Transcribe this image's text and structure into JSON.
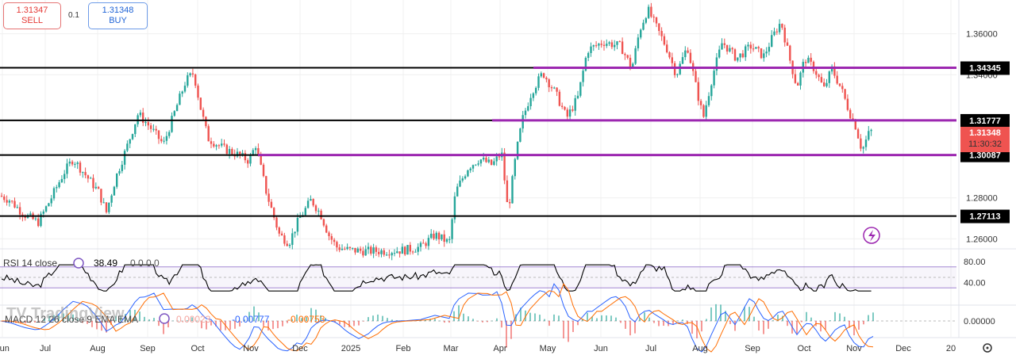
{
  "trade": {
    "sell_price": "1.31347",
    "sell_label": "SELL",
    "spread": "0.1",
    "buy_price": "1.31348",
    "buy_label": "BUY"
  },
  "colors": {
    "up": "#26a69a",
    "down": "#ef5350",
    "support_line": "#000000",
    "resistance_band": "#9c27b0",
    "current_price": "#ef5350",
    "rsi_line": "#000000",
    "rsi_band": "#7e57c2",
    "macd_line": "#2962ff",
    "signal_line": "#ff6d00"
  },
  "watermark": "TradingView",
  "chart_data": {
    "type": "candlestick",
    "y_range": [
      1.2555,
      1.3765
    ],
    "y_ticks": [
      {
        "value": 1.36,
        "label": "1.36000"
      },
      {
        "value": 1.34,
        "label": "1.34000"
      },
      {
        "value": 1.28,
        "label": "1.28000"
      },
      {
        "value": 1.26,
        "label": "1.26000"
      }
    ],
    "x_labels": [
      "Jun",
      "Jul",
      "Aug",
      "Sep",
      "Oct",
      "Nov",
      "Dec",
      "2025",
      "Feb",
      "Mar",
      "Apr",
      "May",
      "Jun",
      "Jul",
      "Aug",
      "Sep",
      "Oct",
      "Nov",
      "Dec",
      "20"
    ],
    "series_path": [
      [
        0,
        1.281
      ],
      [
        12,
        1.279
      ],
      [
        30,
        1.272
      ],
      [
        48,
        1.268
      ],
      [
        62,
        1.278
      ],
      [
        80,
        1.292
      ],
      [
        92,
        1.299
      ],
      [
        108,
        1.291
      ],
      [
        124,
        1.283
      ],
      [
        134,
        1.273
      ],
      [
        146,
        1.29
      ],
      [
        160,
        1.305
      ],
      [
        174,
        1.321
      ],
      [
        188,
        1.315
      ],
      [
        206,
        1.306
      ],
      [
        222,
        1.324
      ],
      [
        234,
        1.337
      ],
      [
        244,
        1.341
      ],
      [
        252,
        1.325
      ],
      [
        262,
        1.309
      ],
      [
        282,
        1.304
      ],
      [
        300,
        1.301
      ],
      [
        314,
        1.298
      ],
      [
        322,
        1.306
      ],
      [
        336,
        1.282
      ],
      [
        352,
        1.262
      ],
      [
        364,
        1.258
      ],
      [
        376,
        1.269
      ],
      [
        392,
        1.279
      ],
      [
        404,
        1.272
      ],
      [
        414,
        1.262
      ],
      [
        424,
        1.256
      ],
      [
        440,
        1.2545
      ],
      [
        460,
        1.254
      ],
      [
        480,
        1.254
      ],
      [
        510,
        1.2545
      ],
      [
        530,
        1.256
      ],
      [
        548,
        1.262
      ],
      [
        566,
        1.258
      ],
      [
        574,
        1.283
      ],
      [
        590,
        1.295
      ],
      [
        604,
        1.299
      ],
      [
        620,
        1.296
      ],
      [
        632,
        1.302
      ],
      [
        640,
        1.273
      ],
      [
        650,
        1.301
      ],
      [
        658,
        1.318
      ],
      [
        670,
        1.332
      ],
      [
        684,
        1.341
      ],
      [
        700,
        1.331
      ],
      [
        714,
        1.319
      ],
      [
        728,
        1.329
      ],
      [
        740,
        1.352
      ],
      [
        760,
        1.356
      ],
      [
        782,
        1.354
      ],
      [
        796,
        1.343
      ],
      [
        806,
        1.362
      ],
      [
        816,
        1.372
      ],
      [
        826,
        1.364
      ],
      [
        840,
        1.353
      ],
      [
        852,
        1.34
      ],
      [
        866,
        1.354
      ],
      [
        878,
        1.332
      ],
      [
        886,
        1.319
      ],
      [
        898,
        1.34
      ],
      [
        910,
        1.356
      ],
      [
        928,
        1.348
      ],
      [
        946,
        1.354
      ],
      [
        962,
        1.349
      ],
      [
        974,
        1.359
      ],
      [
        984,
        1.366
      ],
      [
        994,
        1.349
      ],
      [
        1004,
        1.334
      ],
      [
        1014,
        1.348
      ],
      [
        1026,
        1.343
      ],
      [
        1038,
        1.333
      ],
      [
        1048,
        1.343
      ],
      [
        1060,
        1.333
      ],
      [
        1070,
        1.322
      ],
      [
        1078,
        1.315
      ],
      [
        1086,
        1.303
      ],
      [
        1094,
        1.311
      ],
      [
        1100,
        1.3135
      ]
    ],
    "horizontal_levels": [
      {
        "label": "1.34345",
        "value": 1.34345,
        "kind": "support_line",
        "x_from": 0,
        "x_to": 1205
      },
      {
        "label": "1.31777",
        "value": 1.31777,
        "kind": "support_line",
        "x_from": 0,
        "x_to": 1205
      },
      {
        "label": "1.30087",
        "value": 1.30087,
        "kind": "support_line",
        "x_from": 0,
        "x_to": 1205
      },
      {
        "label": "1.27113",
        "value": 1.27113,
        "kind": "support_line",
        "x_from": 0,
        "x_to": 1205
      },
      {
        "value": 1.34345,
        "kind": "resistance_band",
        "x_from": 672,
        "x_to": 1205
      },
      {
        "value": 1.31777,
        "kind": "resistance_band",
        "x_from": 620,
        "x_to": 1205
      },
      {
        "value": 1.30087,
        "kind": "resistance_band",
        "x_from": 325,
        "x_to": 1205
      }
    ],
    "current_price": {
      "label": "1.31348",
      "countdown": "11:30:32",
      "value": 1.31348
    },
    "rsi": {
      "title": "RSI 14 close",
      "value": "38.49",
      "extras": "0 0 0 0",
      "range": [
        0,
        100
      ],
      "bands": [
        70,
        30
      ],
      "ticks": [
        {
          "value": 80,
          "label": "80.00"
        },
        {
          "value": 40,
          "label": "40.00"
        }
      ]
    },
    "macd": {
      "title": "MACD 12 26 close 9 EMA EMA",
      "hist_value": "0.00023",
      "macd_value": "-0.00777",
      "signal_value": "-0.00753",
      "ticks": [
        {
          "value": 0,
          "label": "0.00000"
        }
      ]
    }
  }
}
